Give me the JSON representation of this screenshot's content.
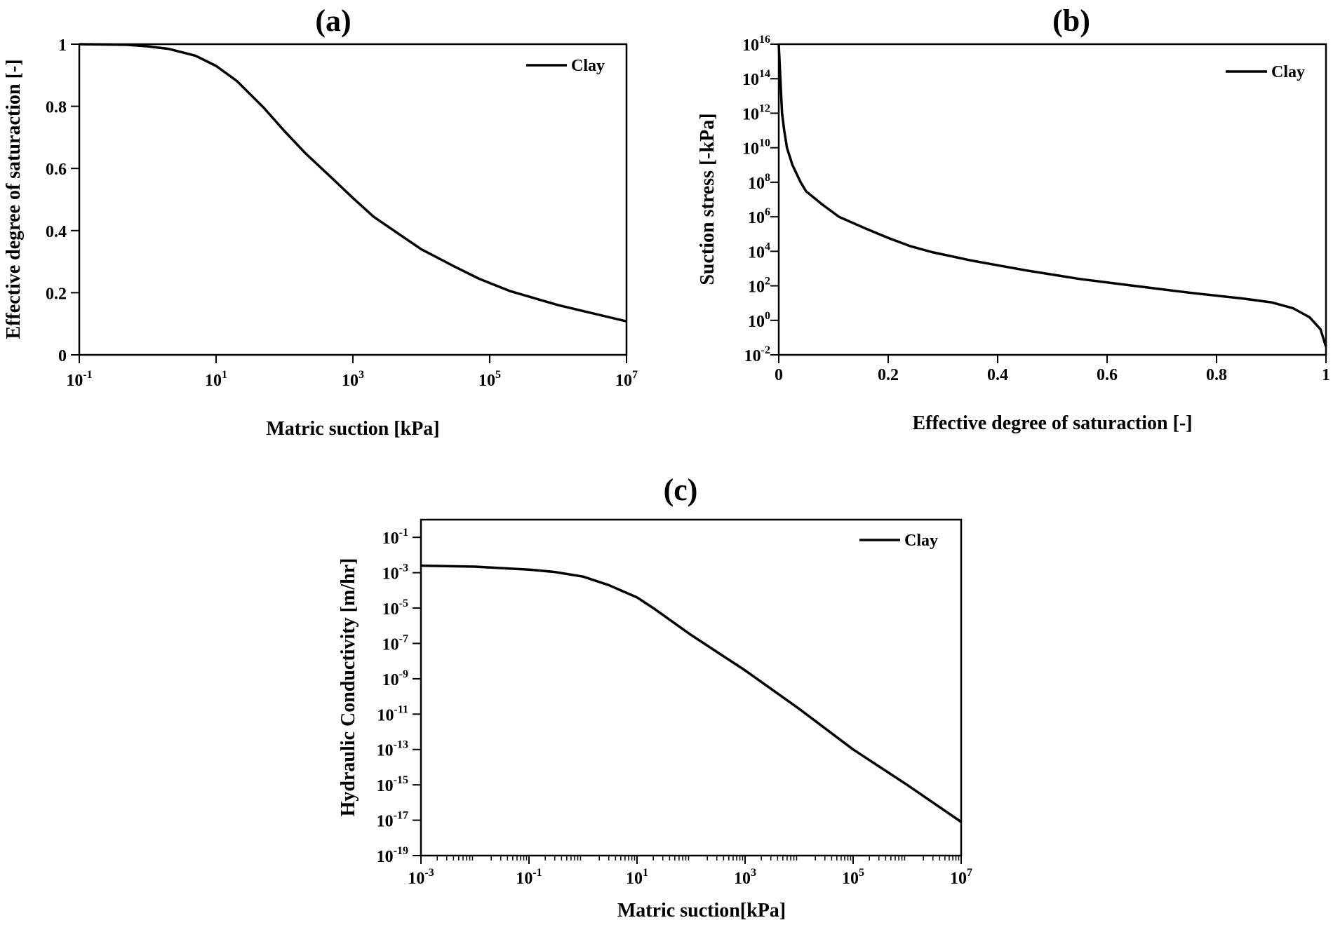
{
  "chart_data": [
    {
      "type": "line",
      "panel_label": "(a)",
      "xlabel": "Matric suction [kPa]",
      "ylabel": "Effective degree of saturaction [-]",
      "xscale": "log",
      "yscale": "linear",
      "xlim": [
        0.1,
        10000000
      ],
      "ylim": [
        0,
        1
      ],
      "xticks": [
        {
          "value": 0.1,
          "base": "10",
          "exp": "-1"
        },
        {
          "value": 10,
          "base": "10",
          "exp": "1"
        },
        {
          "value": 1000,
          "base": "10",
          "exp": "3"
        },
        {
          "value": 100000,
          "base": "10",
          "exp": "5"
        },
        {
          "value": 10000000,
          "base": "10",
          "exp": "7"
        }
      ],
      "yticks": [
        {
          "value": 0,
          "label": "0"
        },
        {
          "value": 0.2,
          "label": "0.2"
        },
        {
          "value": 0.4,
          "label": "0.4"
        },
        {
          "value": 0.6,
          "label": "0.6"
        },
        {
          "value": 0.8,
          "label": "0.8"
        },
        {
          "value": 1,
          "label": "1"
        }
      ],
      "legend_position": "top-right",
      "grid": false,
      "series": [
        {
          "name": "Clay",
          "color": "#000000",
          "x": [
            0.1,
            0.5,
            1,
            2,
            5,
            10,
            20,
            50,
            100,
            200,
            500,
            1000,
            2000,
            5000,
            10000,
            30000,
            70000,
            200000,
            1000000,
            10000000
          ],
          "y": [
            1.0,
            0.998,
            0.993,
            0.985,
            0.963,
            0.93,
            0.882,
            0.795,
            0.72,
            0.65,
            0.568,
            0.505,
            0.445,
            0.385,
            0.34,
            0.285,
            0.245,
            0.205,
            0.16,
            0.108
          ]
        }
      ]
    },
    {
      "type": "line",
      "panel_label": "(b)",
      "xlabel": "Effective degree of saturaction [-]",
      "ylabel": "Suction stress [-kPa]",
      "xscale": "linear",
      "yscale": "log",
      "xlim": [
        0,
        1
      ],
      "ylim": [
        0.01,
        10000000000000000
      ],
      "xticks": [
        {
          "value": 0,
          "label": "0"
        },
        {
          "value": 0.2,
          "label": "0.2"
        },
        {
          "value": 0.4,
          "label": "0.4"
        },
        {
          "value": 0.6,
          "label": "0.6"
        },
        {
          "value": 0.8,
          "label": "0.8"
        },
        {
          "value": 1,
          "label": "1"
        }
      ],
      "yticks": [
        {
          "value": 0.01,
          "base": "10",
          "exp": "-2"
        },
        {
          "value": 1,
          "base": "10",
          "exp": "0"
        },
        {
          "value": 100,
          "base": "10",
          "exp": "2"
        },
        {
          "value": 10000,
          "base": "10",
          "exp": "4"
        },
        {
          "value": 1000000,
          "base": "10",
          "exp": "6"
        },
        {
          "value": 100000000,
          "base": "10",
          "exp": "8"
        },
        {
          "value": 10000000000,
          "base": "10",
          "exp": "10"
        },
        {
          "value": 1000000000000,
          "base": "10",
          "exp": "12"
        },
        {
          "value": 100000000000000,
          "base": "10",
          "exp": "14"
        },
        {
          "value": 10000000000000000,
          "base": "10",
          "exp": "16"
        }
      ],
      "legend_position": "top-right",
      "grid": false,
      "series": [
        {
          "name": "Clay",
          "color": "#000000",
          "x": [
            0.0,
            0.003,
            0.006,
            0.01,
            0.015,
            0.025,
            0.04,
            0.05,
            0.08,
            0.11,
            0.16,
            0.2,
            0.24,
            0.28,
            0.35,
            0.45,
            0.55,
            0.65,
            0.75,
            0.85,
            0.9,
            0.94,
            0.97,
            0.99,
            1.0
          ],
          "y": [
            1e+16,
            100000000000000.0,
            1000000000000.0,
            100000000000.0,
            10000000000.0,
            1000000000.0,
            100000000.0,
            30000000.0,
            5000000.0,
            1000000.0,
            200000.0,
            60000.0,
            20000.0,
            9000,
            3000,
            800,
            250,
            100,
            40,
            18,
            11,
            5,
            1.5,
            0.3,
            0.03
          ]
        }
      ]
    },
    {
      "type": "line",
      "panel_label": "(c)",
      "xlabel": "Matric suction[kPa]",
      "ylabel": "Hydraulic Conductivity [m/hr]",
      "xscale": "log",
      "yscale": "log",
      "xlim": [
        0.001,
        10000000
      ],
      "ylim": [
        1e-19,
        1
      ],
      "xticks": [
        {
          "value": 0.001,
          "base": "10",
          "exp": "-3"
        },
        {
          "value": 0.1,
          "base": "10",
          "exp": "-1"
        },
        {
          "value": 10,
          "base": "10",
          "exp": "1"
        },
        {
          "value": 1000,
          "base": "10",
          "exp": "3"
        },
        {
          "value": 100000,
          "base": "10",
          "exp": "5"
        },
        {
          "value": 10000000,
          "base": "10",
          "exp": "7"
        }
      ],
      "yticks": [
        {
          "value": 1e-19,
          "base": "10",
          "exp": "-19"
        },
        {
          "value": 1e-17,
          "base": "10",
          "exp": "-17"
        },
        {
          "value": 1e-15,
          "base": "10",
          "exp": "-15"
        },
        {
          "value": 1e-13,
          "base": "10",
          "exp": "-13"
        },
        {
          "value": 1e-11,
          "base": "10",
          "exp": "-11"
        },
        {
          "value": 1e-09,
          "base": "10",
          "exp": "-9"
        },
        {
          "value": 1e-07,
          "base": "10",
          "exp": "-7"
        },
        {
          "value": 1e-05,
          "base": "10",
          "exp": "-5"
        },
        {
          "value": 0.001,
          "base": "10",
          "exp": "-3"
        },
        {
          "value": 0.1,
          "base": "10",
          "exp": "-1"
        }
      ],
      "legend_position": "top-right",
      "grid": false,
      "series": [
        {
          "name": "Clay",
          "color": "#000000",
          "x": [
            0.001,
            0.01,
            0.1,
            0.3,
            1,
            3,
            10,
            20,
            100,
            1000,
            10000,
            100000,
            1000000,
            10000000
          ],
          "y": [
            0.0025,
            0.0022,
            0.0015,
            0.0011,
            0.0006,
            0.0002,
            4e-05,
            1e-05,
            3e-07,
            3e-09,
            2e-11,
            1e-13,
            1e-15,
            8e-18
          ]
        }
      ]
    }
  ]
}
